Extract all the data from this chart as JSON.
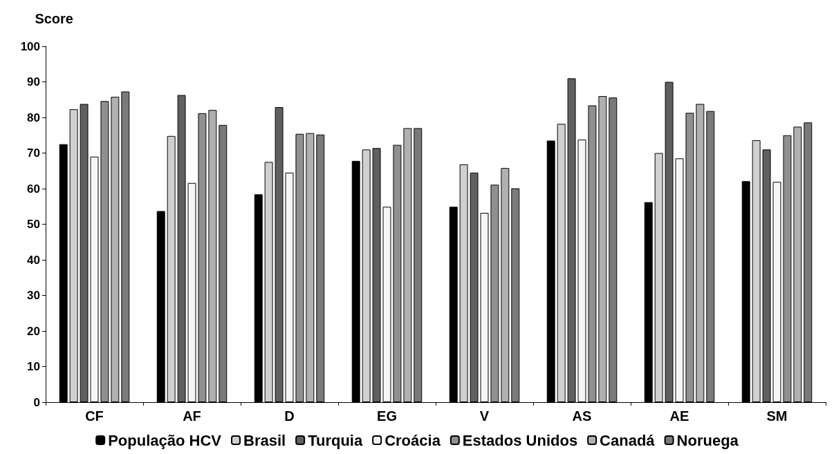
{
  "chart_data": {
    "type": "bar",
    "ylabel": "Score",
    "categories": [
      "CF",
      "AF",
      "D",
      "EG",
      "V",
      "AS",
      "AE",
      "SM"
    ],
    "series": [
      {
        "name": "População HCV",
        "color": "#000000",
        "values": [
          72.5,
          53.7,
          58.4,
          67.8,
          54.9,
          73.5,
          56.2,
          62.1
        ]
      },
      {
        "name": "Brasil",
        "color": "#d0d0d0",
        "values": [
          82.3,
          74.8,
          67.5,
          71,
          66.8,
          78.2,
          70,
          73.6
        ]
      },
      {
        "name": "Turquia",
        "color": "#606060",
        "values": [
          83.8,
          86.3,
          82.9,
          71.4,
          64.5,
          91,
          90,
          71
        ]
      },
      {
        "name": "Croácia",
        "color": "#f5f5f5",
        "values": [
          69,
          61.6,
          64.5,
          54.9,
          53.2,
          73.8,
          68.5,
          61.9
        ]
      },
      {
        "name": "Estados Unidos",
        "color": "#909090",
        "values": [
          84.6,
          81.2,
          75.4,
          72.3,
          61.1,
          83.4,
          81.3,
          75
        ]
      },
      {
        "name": "Canadá",
        "color": "#b0b0b0",
        "values": [
          85.8,
          82.1,
          75.6,
          77,
          65.8,
          86,
          83.8,
          77.4
        ]
      },
      {
        "name": "Noruega",
        "color": "#7a7a7a",
        "values": [
          87.3,
          77.9,
          75.2,
          77,
          60.1,
          85.6,
          81.8,
          78.6
        ]
      }
    ],
    "ylim": [
      0,
      100
    ],
    "yticks": [
      0,
      10,
      20,
      30,
      40,
      50,
      60,
      70,
      80,
      90,
      100
    ],
    "grid": false,
    "legend": "bottom"
  }
}
